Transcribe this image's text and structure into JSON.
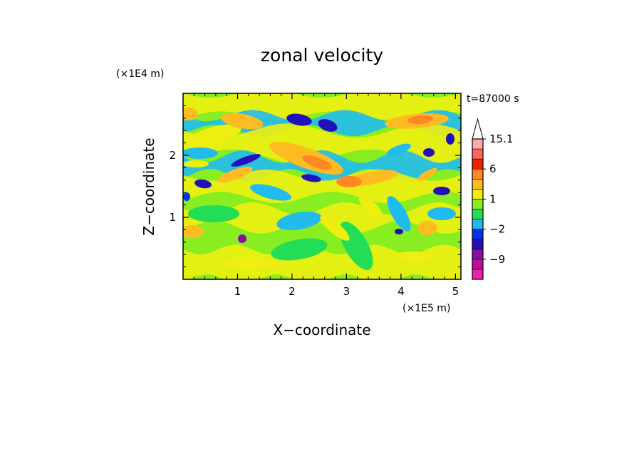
{
  "chart_data": {
    "type": "heatmap",
    "title": "zonal velocity",
    "xlabel": "X−coordinate",
    "ylabel": "Z−coordinate",
    "x_unit": "(×1E5 m)",
    "y_unit": "(×1E4 m)",
    "time_label": "t=87000 s",
    "x_ticks": [
      "1",
      "2",
      "3",
      "4",
      "5"
    ],
    "x_tick_values": [
      1,
      2,
      3,
      4,
      5
    ],
    "y_ticks": [
      "1",
      "2"
    ],
    "y_tick_values": [
      1,
      2
    ],
    "xlim": [
      0,
      5.1
    ],
    "ylim": [
      0,
      3.0
    ],
    "colorbar": {
      "levels": [
        -15,
        -12,
        -9,
        -6,
        -3,
        -2,
        -1,
        0,
        1,
        2,
        3,
        6,
        9,
        12,
        15.1
      ],
      "colors": [
        "#ee22aa",
        "#bb1199",
        "#881199",
        "#2211bb",
        "#0033ee",
        "#22bbee",
        "#22dd55",
        "#88ee22",
        "#eeee11",
        "#ffbb22",
        "#ff8822",
        "#ee2200",
        "#ff6655",
        "#ffaaaa",
        "#ffffff"
      ],
      "tick_labels": [
        "15.1",
        "6",
        "1",
        "−2",
        "−9"
      ],
      "tick_values": [
        15.1,
        6,
        1,
        -2,
        -9
      ],
      "extend": "max"
    }
  }
}
